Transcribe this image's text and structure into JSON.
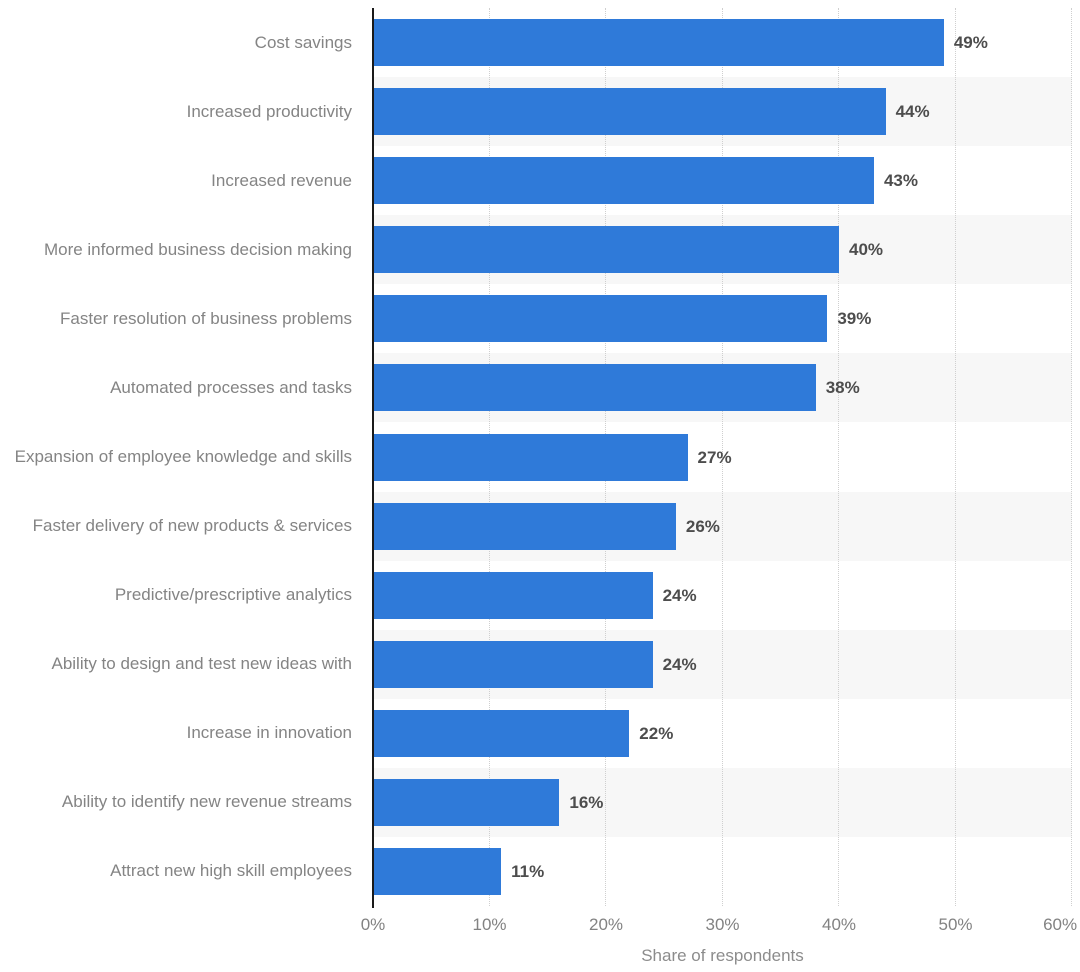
{
  "chart_data": {
    "type": "bar",
    "orientation": "horizontal",
    "title": "",
    "xlabel": "Share of respondents",
    "ylabel": "",
    "xlim": [
      0,
      60
    ],
    "grid": "vertical-dotted",
    "legend": "none",
    "categories": [
      "Cost savings",
      "Increased productivity",
      "Increased revenue",
      "More informed business decision making",
      "Faster resolution of business problems",
      "Automated processes and tasks",
      "Expansion of employee knowledge and skills",
      "Faster delivery of new products & services",
      "Predictive/prescriptive analytics",
      "Ability to design and test new ideas with",
      "Increase in innovation",
      "Ability to identify new revenue streams",
      "Attract new high skill employees"
    ],
    "values": [
      49,
      44,
      43,
      40,
      39,
      38,
      27,
      26,
      24,
      24,
      22,
      16,
      11
    ],
    "value_labels": [
      "49%",
      "44%",
      "43%",
      "40%",
      "39%",
      "38%",
      "27%",
      "26%",
      "24%",
      "24%",
      "22%",
      "16%",
      "11%"
    ],
    "x_tick_labels": [
      "0%",
      "10%",
      "20%",
      "30%",
      "40%",
      "50%",
      "60%"
    ],
    "x_tick_values": [
      0,
      10,
      20,
      30,
      40,
      50,
      60
    ],
    "colors": {
      "bar": "#2F7AD9",
      "row_band": "#F7F7F7",
      "row_band_alt": "#FFFFFF",
      "gridline": "#CFCFCF",
      "axis_line": "#1A1A1A",
      "category_label": "#848484",
      "value_label": "#4D4D4D",
      "tick_label": "#828282",
      "axis_title": "#8C8C8C"
    }
  }
}
